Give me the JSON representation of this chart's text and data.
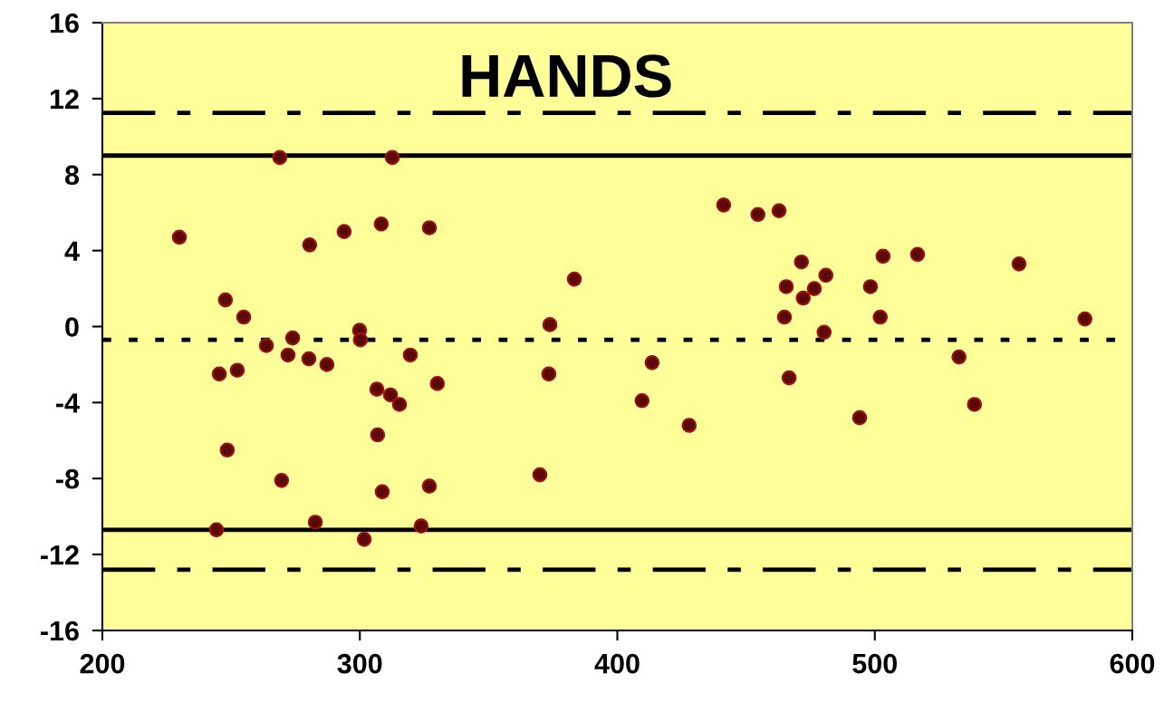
{
  "chart_data": {
    "type": "scatter",
    "title": "HANDS",
    "x": [
      229.9,
      245.4,
      247.8,
      248.5,
      244.3,
      252.4,
      254.9,
      263.7,
      268.9,
      269.6,
      272.1,
      273.9,
      280.5,
      280.2,
      282.7,
      287.2,
      293.9,
      299.9,
      300.2,
      301.7,
      306.6,
      306.9,
      308.3,
      308.7,
      311.9,
      312.6,
      315.4,
      319.6,
      323.8,
      327.0,
      327.0,
      330.1,
      369.9,
      373.8,
      373.4,
      383.3,
      409.6,
      413.5,
      427.9,
      441.3,
      454.6,
      462.8,
      464.9,
      465.6,
      466.7,
      471.5,
      472.2,
      476.5,
      480.3,
      481.0,
      494.1,
      498.3,
      502.1,
      503.2,
      516.6,
      532.7,
      538.7,
      556.0,
      581.6
    ],
    "series": [
      {
        "color": "#5a0a0a",
        "values": [
          4.7,
          -2.5,
          1.4,
          -6.5,
          -10.7,
          -2.3,
          0.5,
          -1.0,
          8.9,
          -8.1,
          -1.5,
          -0.6,
          4.3,
          -1.7,
          -10.3,
          -2.0,
          5.0,
          -0.2,
          -0.7,
          -11.2,
          -3.3,
          -5.7,
          5.4,
          -8.7,
          -3.6,
          8.9,
          -4.1,
          -1.5,
          -10.5,
          5.2,
          -8.4,
          -3.0,
          -7.8,
          0.1,
          -2.5,
          2.5,
          -3.9,
          -1.9,
          -5.2,
          6.4,
          5.9,
          6.1,
          0.5,
          2.1,
          -2.7,
          3.4,
          1.5,
          2.0,
          -0.3,
          2.7,
          -4.8,
          2.1,
          0.5,
          3.7,
          3.8,
          -1.6,
          -4.1,
          3.3,
          0.4
        ]
      }
    ],
    "xlim": [
      200,
      600
    ],
    "xticks": [
      200,
      300,
      400,
      500,
      600
    ],
    "ylim": [
      -16,
      16
    ],
    "yticks": [
      -16,
      -12,
      -8,
      -4,
      0,
      4,
      8,
      12,
      16
    ],
    "marker": "circle",
    "grid": false,
    "ref_lines": [
      {
        "axis": "y",
        "value": 11.25,
        "color": "#000000",
        "line_style": "dashdot"
      },
      {
        "axis": "y",
        "value": 9.0,
        "color": "#000000",
        "line_style": "solid"
      },
      {
        "axis": "y",
        "value": -0.7,
        "color": "#000000",
        "line_style": "dotted"
      },
      {
        "axis": "y",
        "value": -10.7,
        "color": "#000000",
        "line_style": "solid"
      },
      {
        "axis": "y",
        "value": -12.8,
        "color": "#000000",
        "line_style": "dashdot"
      }
    ]
  }
}
